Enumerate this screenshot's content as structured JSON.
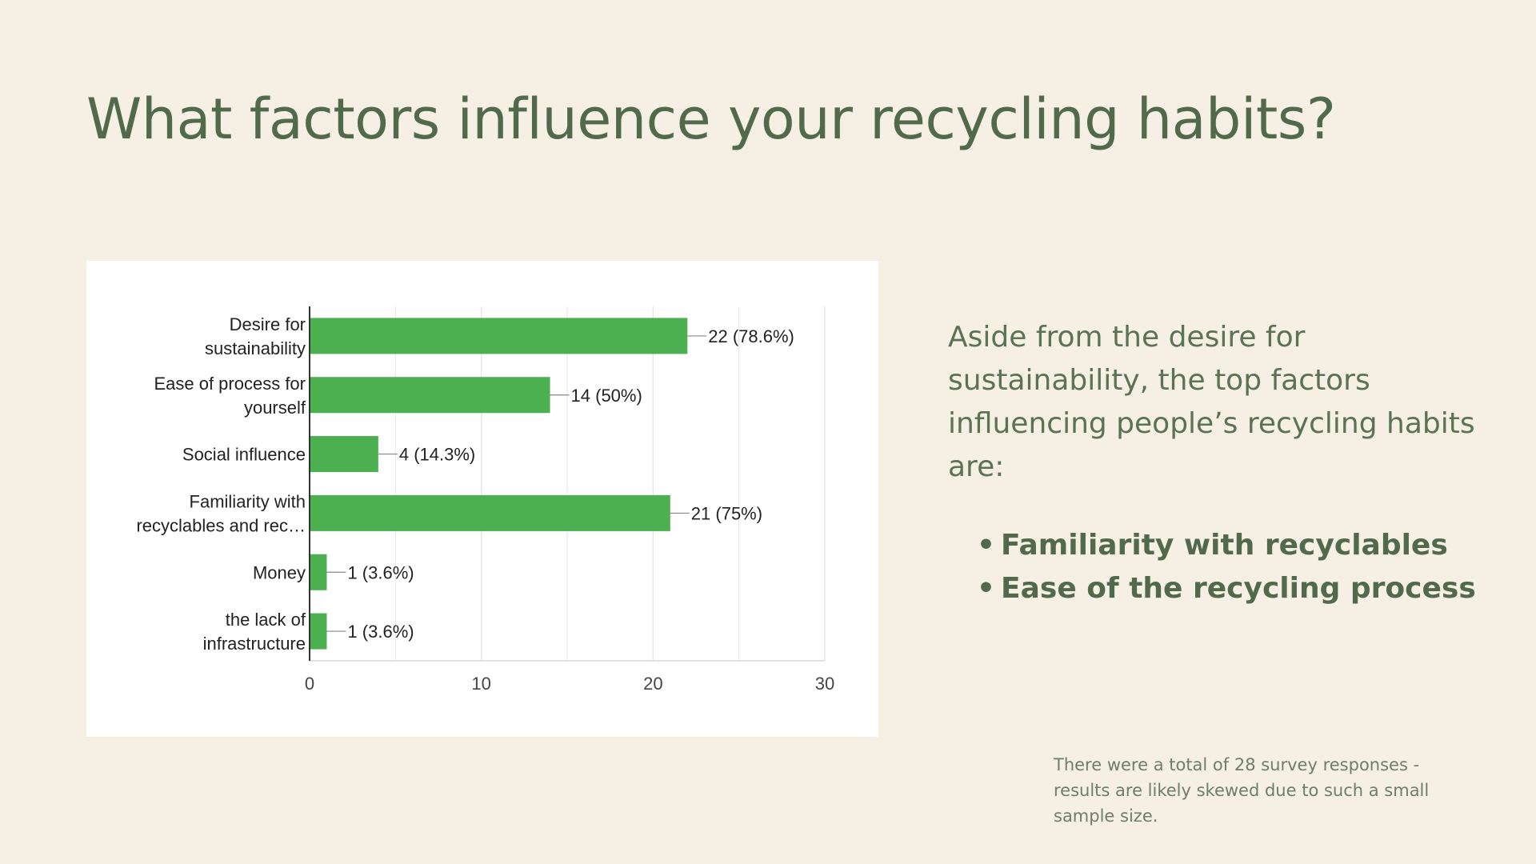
{
  "slide": {
    "title": "What factors influence your recycling habits?",
    "summary_intro": "Aside from the desire for sustainability, the top factors influencing people’s recycling habits are:",
    "highlights": [
      "Familiarity with recyclables",
      "Ease of the recycling process"
    ],
    "footnote": "There were a total of 28 survey responses - results are likely skewed due to such a small sample size.",
    "colors": {
      "background": "#f6efe3",
      "title": "#526a4c",
      "bar": "#4caf50"
    }
  },
  "chart_data": {
    "type": "bar",
    "orientation": "horizontal",
    "categories": [
      [
        "Desire for",
        "sustainability"
      ],
      [
        "Ease of process for",
        "yourself"
      ],
      [
        "Social influence"
      ],
      [
        "Familiarity with",
        "recyclables and rec…"
      ],
      [
        "Money"
      ],
      [
        "the lack of",
        "infrastructure"
      ]
    ],
    "values": [
      22,
      14,
      4,
      21,
      1,
      1
    ],
    "data_labels": [
      "22 (78.6%)",
      "14 (50%)",
      "4 (14.3%)",
      "21 (75%)",
      "1 (3.6%)",
      "1 (3.6%)"
    ],
    "xlim": [
      0,
      30
    ],
    "xticks": [
      0,
      10,
      20,
      30
    ],
    "grid": true,
    "bar_color": "#4caf50"
  }
}
